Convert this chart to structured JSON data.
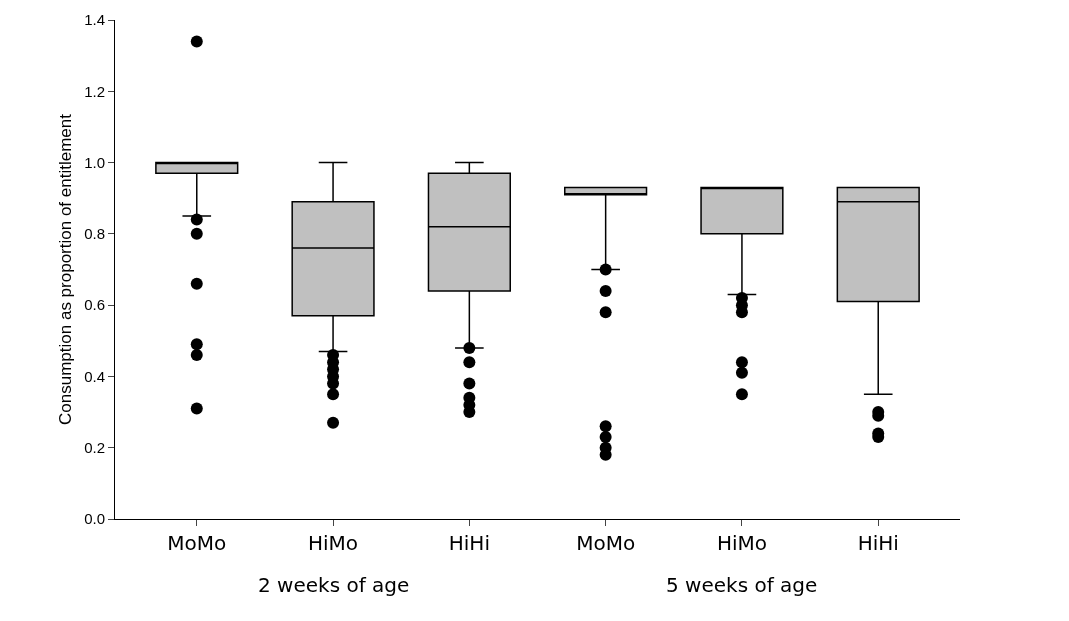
{
  "chart_data": {
    "type": "box",
    "ylabel": "Consumption as proportion of entitlement",
    "categories": [
      "MoMo",
      "HiMo",
      "HiHi",
      "MoMo",
      "HiMo",
      "HiHi"
    ],
    "boxes": [
      {
        "low": 0.85,
        "q1": 0.97,
        "median": 1.0,
        "q3": 1.0,
        "high": 1.0,
        "outliers": [
          1.34,
          0.84,
          0.8,
          0.66,
          0.49,
          0.46,
          0.31
        ]
      },
      {
        "low": 0.47,
        "q1": 0.57,
        "median": 0.76,
        "q3": 0.89,
        "high": 1.0,
        "outliers": [
          0.46,
          0.44,
          0.42,
          0.4,
          0.38,
          0.35,
          0.27
        ]
      },
      {
        "low": 0.48,
        "q1": 0.64,
        "median": 0.82,
        "q3": 0.97,
        "high": 1.0,
        "outliers": [
          0.48,
          0.44,
          0.38,
          0.34,
          0.32,
          0.3
        ]
      },
      {
        "low": 0.7,
        "q1": 0.91,
        "median": 0.91,
        "q3": 0.93,
        "high": 0.93,
        "outliers": [
          0.7,
          0.64,
          0.58,
          0.26,
          0.23,
          0.2,
          0.18
        ]
      },
      {
        "low": 0.63,
        "q1": 0.8,
        "median": 0.93,
        "q3": 0.93,
        "high": 0.93,
        "outliers": [
          0.62,
          0.6,
          0.58,
          0.44,
          0.41,
          0.35
        ]
      },
      {
        "low": 0.35,
        "q1": 0.61,
        "median": 0.89,
        "q3": 0.93,
        "high": 0.93,
        "outliers": [
          0.3,
          0.29,
          0.24,
          0.23
        ]
      }
    ],
    "color": "#c0c0c0",
    "marker": "circle",
    "ylim": [
      0,
      1.4
    ],
    "yticks": [
      {
        "value": 0,
        "label": "0.0"
      },
      {
        "value": 0.2,
        "label": "0.2"
      },
      {
        "value": 0.4,
        "label": "0.4"
      },
      {
        "value": 0.6,
        "label": "0.6"
      },
      {
        "value": 0.8,
        "label": "0.8"
      },
      {
        "value": 1,
        "label": "1.0"
      },
      {
        "value": 1.2,
        "label": "1.2"
      },
      {
        "value": 1.4,
        "label": "1.4"
      }
    ],
    "grid": false,
    "annotations": [
      "2 weeks of age",
      "5 weeks of age"
    ]
  }
}
